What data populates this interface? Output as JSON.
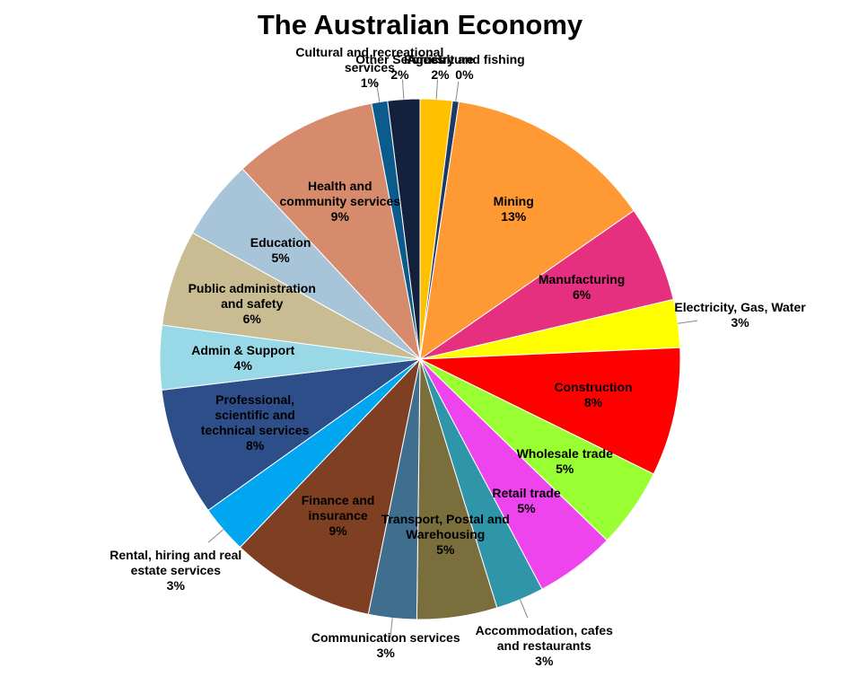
{
  "chart_data": {
    "type": "pie",
    "title": "The Australian Economy",
    "categories": [
      "Agriculture",
      "Forestry and fishing",
      "Mining",
      "Manufacturing",
      "Electricity, Gas, Water",
      "Construction",
      "Wholesale trade",
      "Retail trade",
      "Accommodation, cafes and restaurants",
      "Transport, Postal and Warehousing",
      "Communication services",
      "Finance and insurance",
      "Rental, hiring and real estate services",
      "Professional, scientific and technical services",
      "Admin & Support",
      "Public administration and safety",
      "Education",
      "Health and community services",
      "Cultural and recreational services",
      "Other Services"
    ],
    "values": [
      2,
      0.4,
      13,
      6,
      3,
      8,
      5,
      5,
      3,
      5,
      3,
      9,
      3,
      8,
      4,
      6,
      5,
      9,
      1,
      2
    ],
    "value_labels": [
      "2%",
      "0%",
      "13%",
      "6%",
      "3%",
      "8%",
      "5%",
      "5%",
      "3%",
      "5%",
      "3%",
      "9%",
      "3%",
      "8%",
      "4%",
      "6%",
      "5%",
      "9%",
      "1%",
      "2%"
    ],
    "colors": [
      "#FFC000",
      "#1F3864",
      "#FF9933",
      "#E6307F",
      "#FFFF00",
      "#FF0000",
      "#99FF33",
      "#EE44EE",
      "#2E96A8",
      "#7A6E3C",
      "#3F6E8E",
      "#7F3F22",
      "#00A6F0",
      "#2E4E8A",
      "#99D8E6",
      "#C9BC92",
      "#A8C4D8",
      "#D68B6D",
      "#0B5C8C",
      "#14213D"
    ]
  }
}
